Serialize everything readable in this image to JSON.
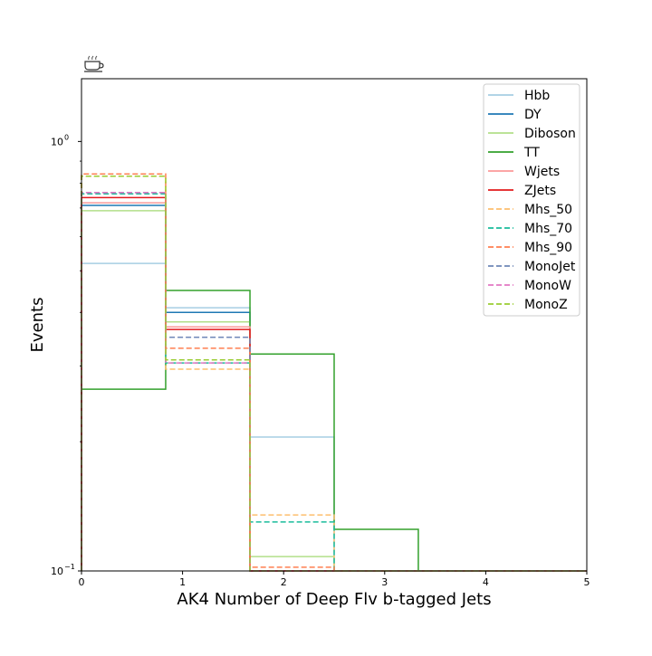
{
  "chart_data": {
    "type": "line",
    "style": "step-histogram",
    "xlabel": "AK4 Number of Deep Flv b-tagged Jets",
    "ylabel": "Events",
    "xlim": [
      0,
      5
    ],
    "ylim": [
      0.1,
      1.4
    ],
    "yscale": "log",
    "grid": false,
    "legend_position": "top-right",
    "x_ticks": [
      "0",
      "1",
      "2",
      "3",
      "4",
      "5"
    ],
    "y_ticks": [
      {
        "value": 1.0,
        "label": "10",
        "exp": "0"
      },
      {
        "value": 0.1,
        "label": "10",
        "exp": "−1"
      }
    ],
    "bin_edges": [
      0,
      0.833,
      1.667,
      2.5,
      3.333,
      4.167,
      5
    ],
    "series": [
      {
        "name": "Hbb",
        "color": "#a6cee3",
        "dashed": false,
        "values": [
          0.52,
          0.41,
          0.205,
          0.0,
          0.0,
          0.0
        ]
      },
      {
        "name": "DY",
        "color": "#1f78b4",
        "dashed": false,
        "values": [
          0.71,
          0.4,
          0.0,
          0.0,
          0.0,
          0.0
        ]
      },
      {
        "name": "Diboson",
        "color": "#b2df8a",
        "dashed": false,
        "values": [
          0.69,
          0.38,
          0.108,
          0.0,
          0.0,
          0.0
        ]
      },
      {
        "name": "TT",
        "color": "#33a02c",
        "dashed": false,
        "values": [
          0.265,
          0.45,
          0.32,
          0.125,
          0.0,
          0.0
        ]
      },
      {
        "name": "Wjets",
        "color": "#fb9a99",
        "dashed": false,
        "values": [
          0.72,
          0.37,
          0.0,
          0.0,
          0.0,
          0.0
        ]
      },
      {
        "name": "ZJets",
        "color": "#e31a1c",
        "dashed": false,
        "values": [
          0.74,
          0.365,
          0.0,
          0.0,
          0.0,
          0.0
        ]
      },
      {
        "name": "Mhs_50",
        "color": "#fdbf6f",
        "dashed": true,
        "values": [
          0.83,
          0.295,
          0.135,
          0.0,
          0.0,
          0.0
        ]
      },
      {
        "name": "Mhs_70",
        "color": "#1abc9c",
        "dashed": true,
        "values": [
          0.755,
          0.305,
          0.13,
          0.0,
          0.0,
          0.0
        ]
      },
      {
        "name": "Mhs_90",
        "color": "#ff7f50",
        "dashed": true,
        "values": [
          0.84,
          0.33,
          0.102,
          0.0,
          0.0,
          0.0
        ]
      },
      {
        "name": "MonoJet",
        "color": "#6f87b8",
        "dashed": true,
        "values": [
          0.76,
          0.35,
          0.0,
          0.0,
          0.0,
          0.0
        ]
      },
      {
        "name": "MonoW",
        "color": "#e377c2",
        "dashed": true,
        "values": [
          0.76,
          0.305,
          0.0,
          0.0,
          0.0,
          0.0
        ]
      },
      {
        "name": "MonoZ",
        "color": "#9acd32",
        "dashed": true,
        "values": [
          0.83,
          0.31,
          0.0,
          0.0,
          0.0,
          0.0
        ]
      }
    ]
  }
}
